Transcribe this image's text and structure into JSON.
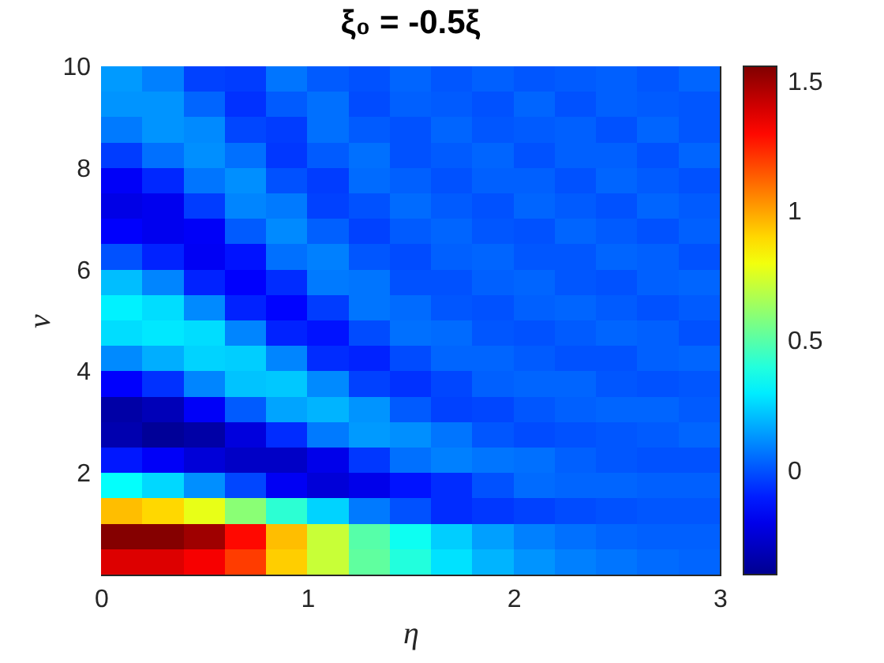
{
  "chart_data": {
    "type": "heatmap",
    "title": "ξ₀ = -0.5ξ",
    "xlabel": "η",
    "ylabel": "ν",
    "x": [
      0.1,
      0.3,
      0.5,
      0.7,
      0.9,
      1.1,
      1.3,
      1.5,
      1.7,
      1.9,
      2.1,
      2.3,
      2.5,
      2.7,
      2.9
    ],
    "y": [
      9.75,
      9.25,
      8.75,
      8.25,
      7.75,
      7.25,
      6.75,
      6.25,
      5.75,
      5.25,
      4.75,
      4.25,
      3.75,
      3.25,
      2.75,
      2.25,
      1.75,
      1.25,
      0.75,
      0.25
    ],
    "xlim": [
      0,
      3
    ],
    "xticks": [
      0,
      1,
      2,
      3
    ],
    "ylim": [
      0,
      10
    ],
    "yticks": [
      2,
      4,
      6,
      8,
      10
    ],
    "clim": [
      -0.4,
      1.56
    ],
    "cticks": [
      0,
      0.5,
      1,
      1.5
    ],
    "cells": [
      [
        0.14,
        0.09,
        -0.03,
        -0.04,
        0.07,
        0.02,
        0,
        0.04,
        0.01,
        0.03,
        0.01,
        0.02,
        0.03,
        0.01,
        0.04
      ],
      [
        0.13,
        0.13,
        0.04,
        -0.06,
        0.02,
        0.06,
        -0.01,
        0.03,
        0.02,
        0,
        0.04,
        0,
        0.03,
        0.02,
        0.01
      ],
      [
        0.08,
        0.13,
        0.11,
        -0.02,
        -0.04,
        0.06,
        0.02,
        0,
        0.04,
        0.01,
        0.02,
        0.03,
        0,
        0.04,
        0.01
      ],
      [
        -0.04,
        0.06,
        0.12,
        0.06,
        -0.05,
        0.02,
        0.06,
        0,
        0.02,
        0.04,
        0,
        0.03,
        0.03,
        0,
        0.04
      ],
      [
        -0.17,
        -0.08,
        0.07,
        0.12,
        0,
        -0.04,
        0.05,
        0.03,
        0,
        0.03,
        0.03,
        0,
        0.04,
        0.02,
        0
      ],
      [
        -0.21,
        -0.19,
        -0.04,
        0.1,
        0.08,
        -0.03,
        0,
        0.05,
        0.02,
        0,
        0.04,
        0.02,
        0,
        0.04,
        0.02
      ],
      [
        -0.16,
        -0.19,
        -0.17,
        0.02,
        0.11,
        0.03,
        -0.03,
        0.02,
        0.04,
        0.01,
        0,
        0.04,
        0.02,
        0,
        0.03
      ],
      [
        0,
        -0.09,
        -0.18,
        -0.12,
        0.06,
        0.09,
        0.01,
        -0.01,
        0.03,
        0.04,
        0.01,
        0.01,
        0.04,
        0.03,
        0
      ],
      [
        0.21,
        0.1,
        -0.09,
        -0.16,
        -0.07,
        0.08,
        0.07,
        0,
        0,
        0.03,
        0.04,
        0.01,
        0,
        0.03,
        0.04
      ],
      [
        0.31,
        0.27,
        0.11,
        -0.09,
        -0.15,
        -0.04,
        0.07,
        0.05,
        0.01,
        0,
        0.03,
        0.04,
        0.02,
        0,
        0.02
      ],
      [
        0.27,
        0.29,
        0.27,
        0.1,
        -0.09,
        -0.12,
        -0.01,
        0.06,
        0.05,
        0.01,
        0,
        0.02,
        0.04,
        0.03,
        0
      ],
      [
        0.11,
        0.18,
        0.25,
        0.24,
        0.1,
        -0.07,
        -0.09,
        -0.01,
        0.04,
        0.04,
        0.02,
        0,
        0,
        0.03,
        0.04
      ],
      [
        -0.16,
        -0.06,
        0.1,
        0.22,
        0.23,
        0.11,
        -0.03,
        -0.06,
        -0.02,
        0.03,
        0.04,
        0.04,
        0.01,
        0,
        0.01
      ],
      [
        -0.35,
        -0.31,
        -0.17,
        0.02,
        0.16,
        0.19,
        0.13,
        0.02,
        -0.03,
        -0.02,
        0.01,
        0.03,
        0.04,
        0.04,
        0.02
      ],
      [
        -0.33,
        -0.38,
        -0.35,
        -0.23,
        -0.07,
        0.08,
        0.14,
        0.12,
        0.07,
        0.01,
        -0.01,
        0,
        0.01,
        0.02,
        0.04
      ],
      [
        -0.11,
        -0.17,
        -0.24,
        -0.28,
        -0.28,
        -0.2,
        -0.05,
        0.06,
        0.09,
        0.07,
        0.06,
        0.03,
        0.01,
        0,
        0
      ],
      [
        0.34,
        0.26,
        0.12,
        -0.02,
        -0.18,
        -0.24,
        -0.2,
        -0.12,
        -0.07,
        0,
        0.05,
        0.04,
        0.04,
        0.03,
        0.03
      ],
      [
        0.95,
        0.9,
        0.78,
        0.6,
        0.42,
        0.25,
        0.08,
        0,
        -0.07,
        -0.05,
        -0.03,
        -0.01,
        0,
        0.01,
        0.01
      ],
      [
        1.55,
        1.55,
        1.5,
        1.3,
        0.95,
        0.72,
        0.5,
        0.36,
        0.24,
        0.15,
        0.09,
        0.06,
        0.04,
        0.03,
        0.03
      ],
      [
        1.38,
        1.38,
        1.33,
        1.2,
        0.92,
        0.72,
        0.52,
        0.4,
        0.28,
        0.19,
        0.13,
        0.09,
        0.07,
        0.05,
        0.04
      ]
    ]
  }
}
